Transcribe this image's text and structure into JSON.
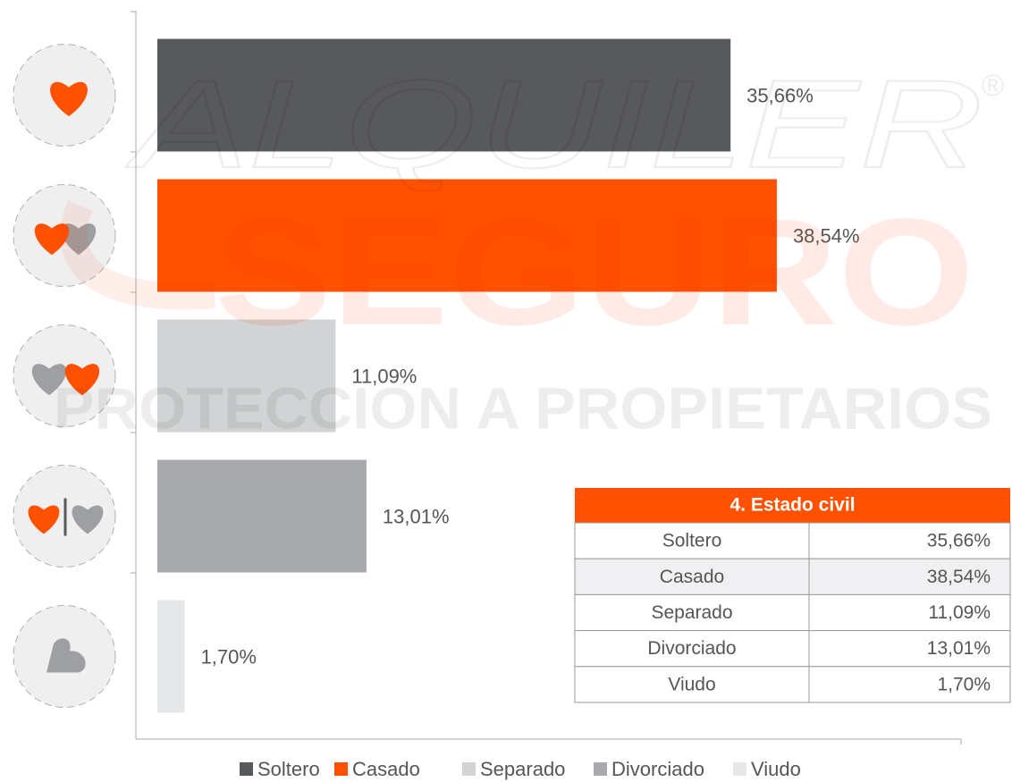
{
  "chart_data": {
    "type": "bar",
    "orientation": "horizontal",
    "categories": [
      "Soltero",
      "Casado",
      "Separado",
      "Divorciado",
      "Viudo"
    ],
    "values": [
      35.66,
      38.54,
      11.09,
      13.01,
      1.7
    ],
    "value_labels": [
      "35,66%",
      "38,54%",
      "11,09%",
      "13,01%",
      "1,70%"
    ],
    "colors": [
      "#58595b",
      "#ff5100",
      "#d1d3d4",
      "#a7a9ac",
      "#e6e7e8"
    ],
    "xlim": [
      0,
      50
    ]
  },
  "table": {
    "title": "4. Estado civil",
    "rows": [
      [
        "Soltero",
        "35,66%"
      ],
      [
        "Casado",
        "38,54%"
      ],
      [
        "Separado",
        "11,09%"
      ],
      [
        "Divorciado",
        "13,01%"
      ],
      [
        "Viudo",
        "1,70%"
      ]
    ]
  },
  "watermark": {
    "line1": "ALQUILER",
    "mark": "®",
    "line2": "SEGURO",
    "line3": "PROTECCION A PROPIETARIOS"
  }
}
